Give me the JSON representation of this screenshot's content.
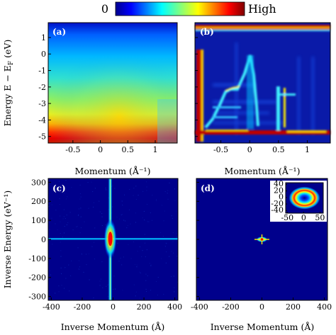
{
  "colorbar": {
    "low_label": "0",
    "high_label": "High"
  },
  "chart_data": [
    {
      "type": "heatmap",
      "panel_label": "(a)",
      "xlabel": "Momentum (Å⁻¹)",
      "ylabel": "Energy  E − E",
      "ylabel_sub": "F",
      "ylabel_unit": " (eV)",
      "xlim": [
        -0.95,
        1.4
      ],
      "ylim": [
        -5.4,
        1.9
      ],
      "xticks": [
        {
          "v": -0.5,
          "t": "-0.5"
        },
        {
          "v": 0,
          "t": "0"
        },
        {
          "v": 0.5,
          "t": "0.5"
        },
        {
          "v": 1,
          "t": "1"
        }
      ],
      "yticks": [
        {
          "v": 1,
          "t": "1"
        },
        {
          "v": 0,
          "t": "0"
        },
        {
          "v": -1,
          "t": "-1"
        },
        {
          "v": -2,
          "t": "-2"
        },
        {
          "v": -3,
          "t": "-3"
        },
        {
          "v": -4,
          "t": "-4"
        },
        {
          "v": -5,
          "t": "-5"
        }
      ]
    },
    {
      "type": "heatmap",
      "panel_label": "(b)",
      "xlabel": "Momentum (Å⁻¹)",
      "xlim": [
        -0.95,
        1.4
      ],
      "ylim": [
        -5.4,
        1.9
      ],
      "xticks": [
        {
          "v": -0.5,
          "t": "-0.5"
        },
        {
          "v": 0,
          "t": "0"
        },
        {
          "v": 0.5,
          "t": "0.5"
        },
        {
          "v": 1,
          "t": "1"
        }
      ],
      "yticks": [
        {
          "v": 1,
          "t": ""
        },
        {
          "v": 0,
          "t": ""
        },
        {
          "v": -1,
          "t": ""
        },
        {
          "v": -2,
          "t": ""
        },
        {
          "v": -3,
          "t": ""
        },
        {
          "v": -4,
          "t": ""
        },
        {
          "v": -5,
          "t": ""
        }
      ]
    },
    {
      "type": "heatmap",
      "panel_label": "(c)",
      "xlabel": "Inverse Momentum (Å)",
      "ylabel": "Inverse Energy  (eV⁻¹)",
      "xlim": [
        -420,
        420
      ],
      "ylim": [
        -320,
        320
      ],
      "xticks": [
        {
          "v": -400,
          "t": "-400"
        },
        {
          "v": -200,
          "t": "-200"
        },
        {
          "v": 0,
          "t": "0"
        },
        {
          "v": 200,
          "t": "200"
        },
        {
          "v": 400,
          "t": "400"
        }
      ],
      "yticks": [
        {
          "v": 300,
          "t": "300"
        },
        {
          "v": 200,
          "t": "200"
        },
        {
          "v": 100,
          "t": "100"
        },
        {
          "v": 0,
          "t": "0"
        },
        {
          "v": -100,
          "t": "-100"
        },
        {
          "v": -200,
          "t": "-200"
        },
        {
          "v": -300,
          "t": "-300"
        }
      ]
    },
    {
      "type": "heatmap",
      "panel_label": "(d)",
      "xlabel": "Inverse Momentum (Å)",
      "xlim": [
        -420,
        420
      ],
      "ylim": [
        -320,
        320
      ],
      "xticks": [
        {
          "v": -400,
          "t": "-400"
        },
        {
          "v": -200,
          "t": "-200"
        },
        {
          "v": 0,
          "t": "0"
        },
        {
          "v": 200,
          "t": "200"
        },
        {
          "v": 400,
          "t": "400"
        }
      ],
      "yticks": [
        {
          "v": 300,
          "t": ""
        },
        {
          "v": 200,
          "t": ""
        },
        {
          "v": 100,
          "t": ""
        },
        {
          "v": 0,
          "t": ""
        },
        {
          "v": -100,
          "t": ""
        },
        {
          "v": -200,
          "t": ""
        },
        {
          "v": -300,
          "t": ""
        }
      ],
      "inset": {
        "xlim": [
          -55,
          60
        ],
        "ylim": [
          -48,
          45
        ],
        "xticks": [
          {
            "v": -50,
            "t": "-50"
          },
          {
            "v": 0,
            "t": "0"
          },
          {
            "v": 50,
            "t": "50"
          }
        ],
        "yticks": [
          {
            "v": 40,
            "t": "40"
          },
          {
            "v": 20,
            "t": "20"
          },
          {
            "v": 0,
            "t": "0"
          },
          {
            "v": -20,
            "t": "-20"
          },
          {
            "v": -40,
            "t": "-40"
          }
        ]
      }
    }
  ]
}
